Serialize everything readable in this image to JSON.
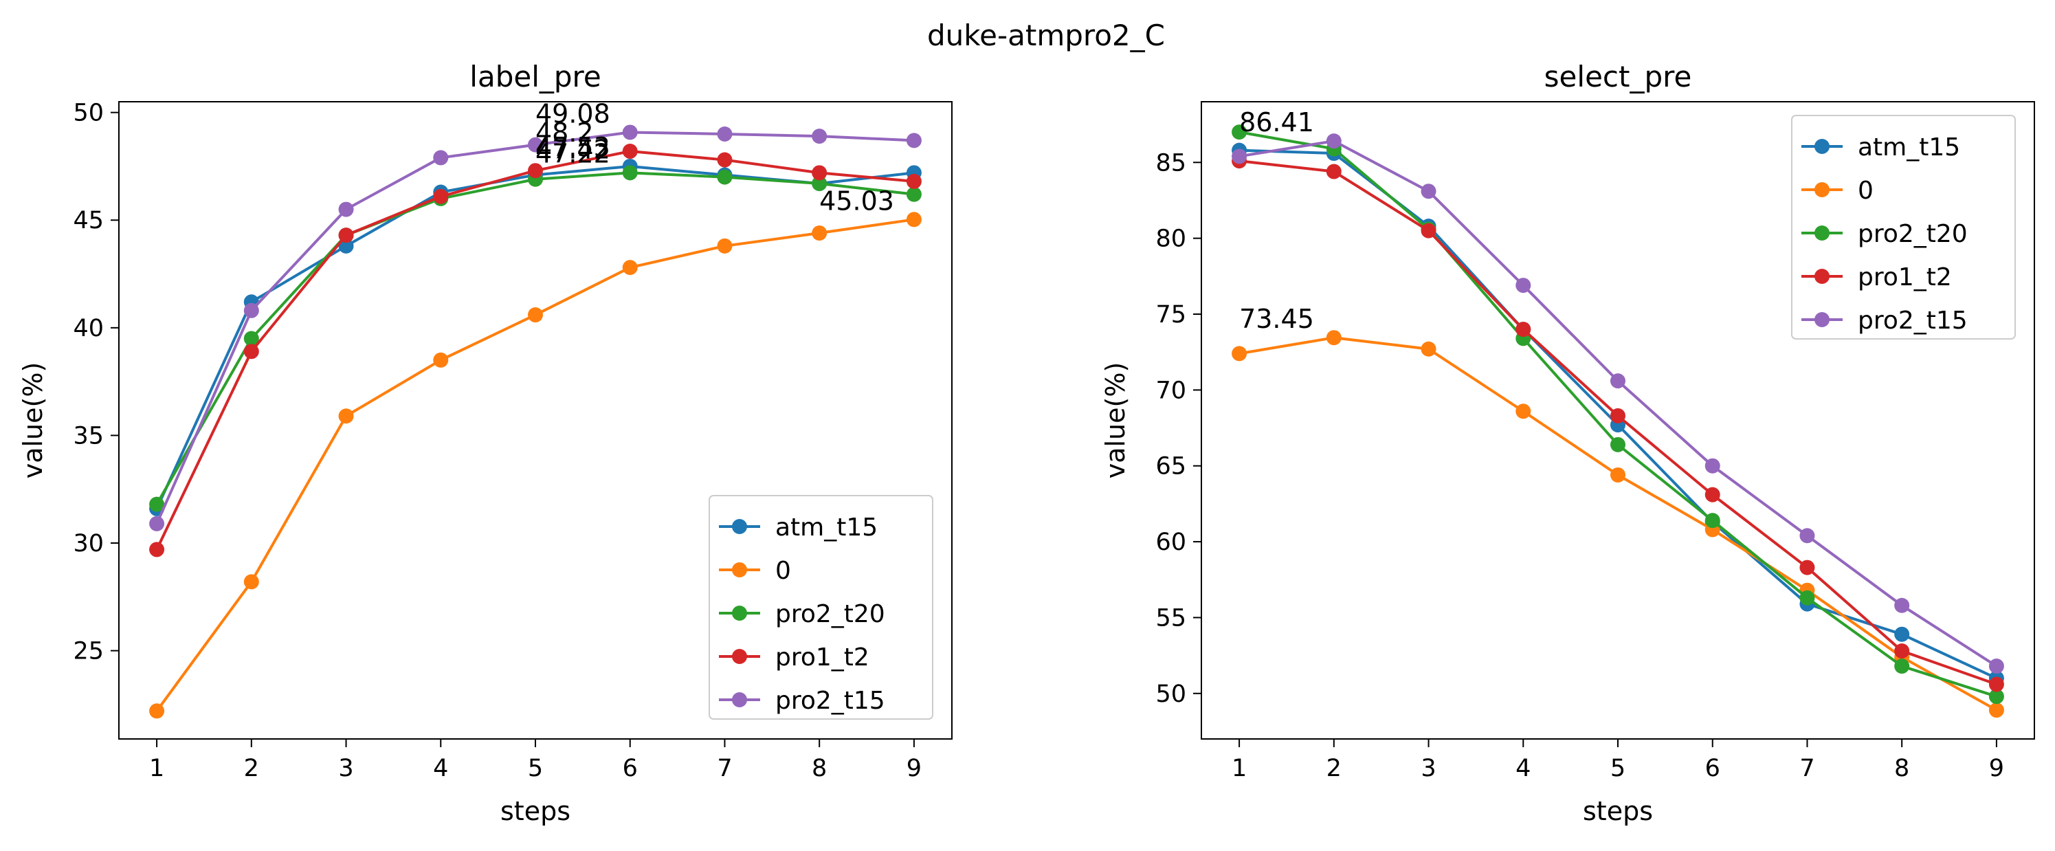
{
  "figure": {
    "suptitle": "duke-atmpro2_C"
  },
  "series_colors": {
    "atm_t15": "#1f77b4",
    "0": "#ff7f0e",
    "pro2_t20": "#2ca02c",
    "pro1_t2": "#d62728",
    "pro2_t15": "#9467bd"
  },
  "chart_data": [
    {
      "type": "line",
      "title": "label_pre",
      "xlabel": "steps",
      "ylabel": "value(%)",
      "x": [
        1,
        2,
        3,
        4,
        5,
        6,
        7,
        8,
        9
      ],
      "xlim": [
        0.6,
        9.4
      ],
      "ylim": [
        20.9,
        50.5
      ],
      "xticks": [
        1,
        2,
        3,
        4,
        5,
        6,
        7,
        8,
        9
      ],
      "yticks": [
        25,
        30,
        35,
        40,
        45,
        50
      ],
      "legend_position": "lower right",
      "grid": false,
      "series": [
        {
          "name": "atm_t15",
          "values": [
            31.6,
            41.2,
            43.8,
            46.3,
            47.1,
            47.5,
            47.1,
            46.7,
            47.2
          ]
        },
        {
          "name": "0",
          "values": [
            22.2,
            28.2,
            35.9,
            38.5,
            40.6,
            42.8,
            43.8,
            44.4,
            45.03
          ]
        },
        {
          "name": "pro2_t20",
          "values": [
            31.8,
            39.5,
            44.3,
            46.0,
            46.9,
            47.2,
            47.0,
            46.7,
            46.2
          ]
        },
        {
          "name": "pro1_t2",
          "values": [
            29.7,
            38.9,
            44.3,
            46.1,
            47.3,
            48.2,
            47.8,
            47.2,
            46.8
          ]
        },
        {
          "name": "pro2_t15",
          "values": [
            30.9,
            40.8,
            45.5,
            47.9,
            48.5,
            49.08,
            49.0,
            48.9,
            48.7
          ]
        }
      ],
      "annotations": [
        {
          "x": 5,
          "y": 49.08,
          "text": "49.08"
        },
        {
          "x": 5,
          "y": 48.2,
          "text": "48.2"
        },
        {
          "x": 5,
          "y": 47.53,
          "text": "47.53"
        },
        {
          "x": 5,
          "y": 47.42,
          "text": "47.42"
        },
        {
          "x": 5,
          "y": 47.22,
          "text": "47.22"
        },
        {
          "x": 8,
          "y": 45.03,
          "text": "45.03"
        }
      ]
    },
    {
      "type": "line",
      "title": "select_pre",
      "xlabel": "steps",
      "ylabel": "value(%)",
      "x": [
        1,
        2,
        3,
        4,
        5,
        6,
        7,
        8,
        9
      ],
      "xlim": [
        0.6,
        9.4
      ],
      "ylim": [
        47.0,
        89.0
      ],
      "xticks": [
        1,
        2,
        3,
        4,
        5,
        6,
        7,
        8,
        9
      ],
      "yticks": [
        50,
        55,
        60,
        65,
        70,
        75,
        80,
        85
      ],
      "legend_position": "upper right",
      "grid": false,
      "series": [
        {
          "name": "atm_t15",
          "values": [
            85.8,
            85.6,
            80.8,
            74.0,
            67.7,
            61.3,
            55.9,
            53.9,
            51.0
          ]
        },
        {
          "name": "0",
          "values": [
            72.4,
            73.45,
            72.7,
            68.6,
            64.4,
            60.8,
            56.8,
            52.4,
            48.9
          ]
        },
        {
          "name": "pro2_t20",
          "values": [
            87.0,
            85.9,
            80.6,
            73.4,
            66.4,
            61.4,
            56.3,
            51.8,
            49.8
          ]
        },
        {
          "name": "pro1_t2",
          "values": [
            85.1,
            84.4,
            80.5,
            74.0,
            68.3,
            63.1,
            58.3,
            52.8,
            50.6
          ]
        },
        {
          "name": "pro2_t15",
          "values": [
            85.4,
            86.41,
            83.1,
            76.9,
            70.6,
            65.0,
            60.4,
            55.8,
            51.8
          ]
        }
      ],
      "annotations": [
        {
          "x": 1,
          "y": 86.41,
          "text": "86.41"
        },
        {
          "x": 1,
          "y": 73.45,
          "text": "73.45"
        }
      ]
    }
  ]
}
